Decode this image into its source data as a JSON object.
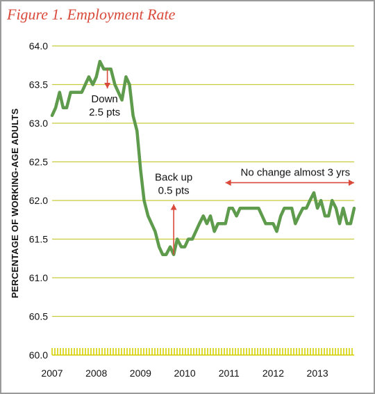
{
  "chart_data": {
    "type": "line",
    "title": "Figure 1. Employment Rate",
    "xlabel": "",
    "ylabel": "PERCENTAGE OF WORKING-AGE ADULTS",
    "ylim": [
      60.0,
      64.0
    ],
    "xlim": [
      2007.0,
      2013.83
    ],
    "y_ticks": [
      "60.0",
      "60.5",
      "61.0",
      "61.5",
      "62.0",
      "62.5",
      "63.0",
      "63.5",
      "64.0"
    ],
    "x_ticks": [
      "2007",
      "2008",
      "2009",
      "2010",
      "2011",
      "2012",
      "2013"
    ],
    "grid": "horizontal",
    "colors": {
      "line": "#5e9b4c",
      "grid": "#c8cc3a",
      "accent": "#d94a3b",
      "baseline_ticks": "#d4d000"
    },
    "series": [
      {
        "x": [
          2007.0,
          2007.08,
          2007.17,
          2007.25,
          2007.33,
          2007.42,
          2007.5,
          2007.58,
          2007.67,
          2007.75,
          2007.83,
          2007.92,
          2008.0,
          2008.08,
          2008.17,
          2008.25,
          2008.33,
          2008.42,
          2008.5,
          2008.58,
          2008.67,
          2008.75,
          2008.83,
          2008.92,
          2009.0,
          2009.08,
          2009.17,
          2009.25,
          2009.33,
          2009.42,
          2009.5,
          2009.58,
          2009.67,
          2009.75,
          2009.83,
          2009.92,
          2010.0,
          2010.08,
          2010.17,
          2010.25,
          2010.33,
          2010.42,
          2010.5,
          2010.58,
          2010.67,
          2010.75,
          2010.83,
          2010.92,
          2011.0,
          2011.08,
          2011.17,
          2011.25,
          2011.33,
          2011.42,
          2011.5,
          2011.58,
          2011.67,
          2011.75,
          2011.83,
          2011.92,
          2012.0,
          2012.08,
          2012.17,
          2012.25,
          2012.33,
          2012.42,
          2012.5,
          2012.58,
          2012.67,
          2012.75,
          2012.83,
          2012.92,
          2013.0,
          2013.08,
          2013.17,
          2013.25,
          2013.33,
          2013.42,
          2013.5,
          2013.58,
          2013.67,
          2013.75,
          2013.83
        ],
        "values": [
          63.1,
          63.2,
          63.4,
          63.2,
          63.2,
          63.4,
          63.4,
          63.4,
          63.4,
          63.5,
          63.6,
          63.5,
          63.6,
          63.8,
          63.7,
          63.7,
          63.7,
          63.5,
          63.4,
          63.3,
          63.6,
          63.5,
          63.1,
          62.9,
          62.4,
          62.0,
          61.8,
          61.7,
          61.6,
          61.4,
          61.3,
          61.3,
          61.4,
          61.3,
          61.5,
          61.4,
          61.4,
          61.5,
          61.5,
          61.6,
          61.7,
          61.8,
          61.7,
          61.8,
          61.6,
          61.7,
          61.7,
          61.7,
          61.9,
          61.9,
          61.8,
          61.9,
          61.9,
          61.9,
          61.9,
          61.9,
          61.9,
          61.8,
          61.7,
          61.7,
          61.7,
          61.6,
          61.8,
          61.9,
          61.9,
          61.9,
          61.7,
          61.8,
          61.9,
          61.9,
          62.0,
          62.1,
          61.9,
          62.0,
          61.8,
          61.8,
          62.0,
          61.9,
          61.7,
          61.9,
          61.7,
          61.7,
          61.9
        ]
      }
    ],
    "annotations": [
      {
        "lines": [
          "Down",
          "2.5 pts"
        ],
        "arrow": "down",
        "x_from": 2008.25,
        "y_from": 63.7,
        "x_to": 2008.25,
        "y_to": 63.45
      },
      {
        "lines": [
          "Back up",
          "0.5 pts"
        ],
        "arrow": "up",
        "x_from": 2009.75,
        "y_from": 61.3,
        "x_to": 2009.75,
        "y_to": 61.95
      },
      {
        "lines": [
          "No change almost 3 yrs"
        ],
        "arrow": "both",
        "x_from": 2010.92,
        "y_from": 62.23,
        "x_to": 2013.83,
        "y_to": 62.23
      }
    ]
  }
}
